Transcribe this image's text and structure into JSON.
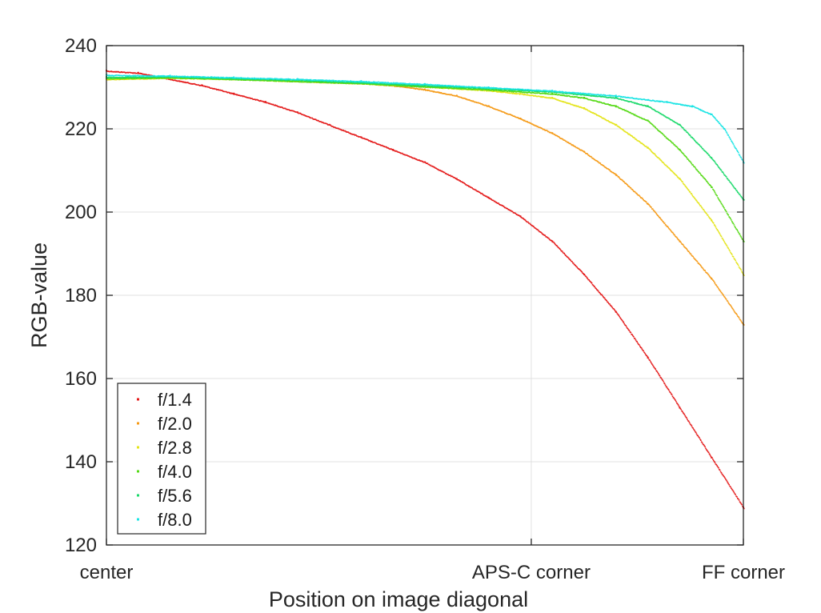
{
  "chart_data": {
    "type": "scatter",
    "xlabel": "Position on image diagonal",
    "ylabel": "RGB-value",
    "xlim": [
      0,
      1
    ],
    "ylim": [
      120,
      240
    ],
    "yticks": [
      120,
      140,
      160,
      180,
      200,
      220,
      240
    ],
    "xticks": [
      {
        "value": 0,
        "label": "center"
      },
      {
        "value": 0.667,
        "label": "APS-C corner"
      },
      {
        "value": 1,
        "label": "FF corner"
      }
    ],
    "grid": true,
    "legend_position": "bottom-left",
    "series": [
      {
        "name": "f/1.4",
        "color": "#e41a1a",
        "x": [
          0,
          0.05,
          0.1,
          0.15,
          0.2,
          0.25,
          0.3,
          0.35,
          0.4,
          0.45,
          0.5,
          0.55,
          0.6,
          0.65,
          0.7,
          0.75,
          0.8,
          0.85,
          0.9,
          0.95,
          1.0
        ],
        "y": [
          234,
          233.5,
          232,
          230.5,
          228.5,
          226.5,
          224,
          221,
          218,
          215,
          212,
          208,
          203.5,
          199,
          193,
          185,
          176,
          165,
          153,
          141,
          129
        ]
      },
      {
        "name": "f/2.0",
        "color": "#f59a16",
        "x": [
          0,
          0.1,
          0.2,
          0.3,
          0.4,
          0.45,
          0.5,
          0.55,
          0.6,
          0.65,
          0.7,
          0.75,
          0.8,
          0.85,
          0.9,
          0.95,
          1.0
        ],
        "y": [
          232,
          232.5,
          232.2,
          231.5,
          231,
          230.5,
          229.5,
          228,
          225.5,
          222.5,
          219,
          214.5,
          209,
          202,
          193,
          184,
          173
        ]
      },
      {
        "name": "f/2.8",
        "color": "#e4e41a",
        "x": [
          0,
          0.1,
          0.2,
          0.3,
          0.4,
          0.5,
          0.6,
          0.65,
          0.7,
          0.75,
          0.8,
          0.85,
          0.9,
          0.95,
          1.0
        ],
        "y": [
          232,
          232.3,
          232,
          231.5,
          231,
          230.2,
          229.3,
          228.5,
          227.5,
          225,
          221,
          215.5,
          208,
          198,
          185
        ]
      },
      {
        "name": "f/4.0",
        "color": "#55d915",
        "x": [
          0,
          0.1,
          0.2,
          0.3,
          0.4,
          0.5,
          0.6,
          0.7,
          0.75,
          0.8,
          0.85,
          0.9,
          0.95,
          1.0
        ],
        "y": [
          232.2,
          232.4,
          232,
          231.5,
          231,
          230.2,
          229.5,
          228.5,
          227.5,
          225.5,
          222,
          215,
          206,
          193
        ]
      },
      {
        "name": "f/5.6",
        "color": "#1ad96a",
        "x": [
          0,
          0.1,
          0.2,
          0.3,
          0.4,
          0.5,
          0.6,
          0.7,
          0.8,
          0.85,
          0.9,
          0.95,
          1.0
        ],
        "y": [
          232.5,
          232.6,
          232.2,
          231.8,
          231.2,
          230.5,
          229.8,
          229,
          227.5,
          225.5,
          221,
          213,
          203
        ]
      },
      {
        "name": "f/8.0",
        "color": "#1ae4e4",
        "x": [
          0,
          0.1,
          0.2,
          0.3,
          0.4,
          0.5,
          0.6,
          0.7,
          0.8,
          0.88,
          0.92,
          0.95,
          0.97,
          1.0
        ],
        "y": [
          233,
          232.8,
          232.4,
          232,
          231.5,
          230.8,
          230,
          229.2,
          228,
          226.5,
          225.5,
          223.5,
          220,
          212
        ]
      }
    ]
  }
}
